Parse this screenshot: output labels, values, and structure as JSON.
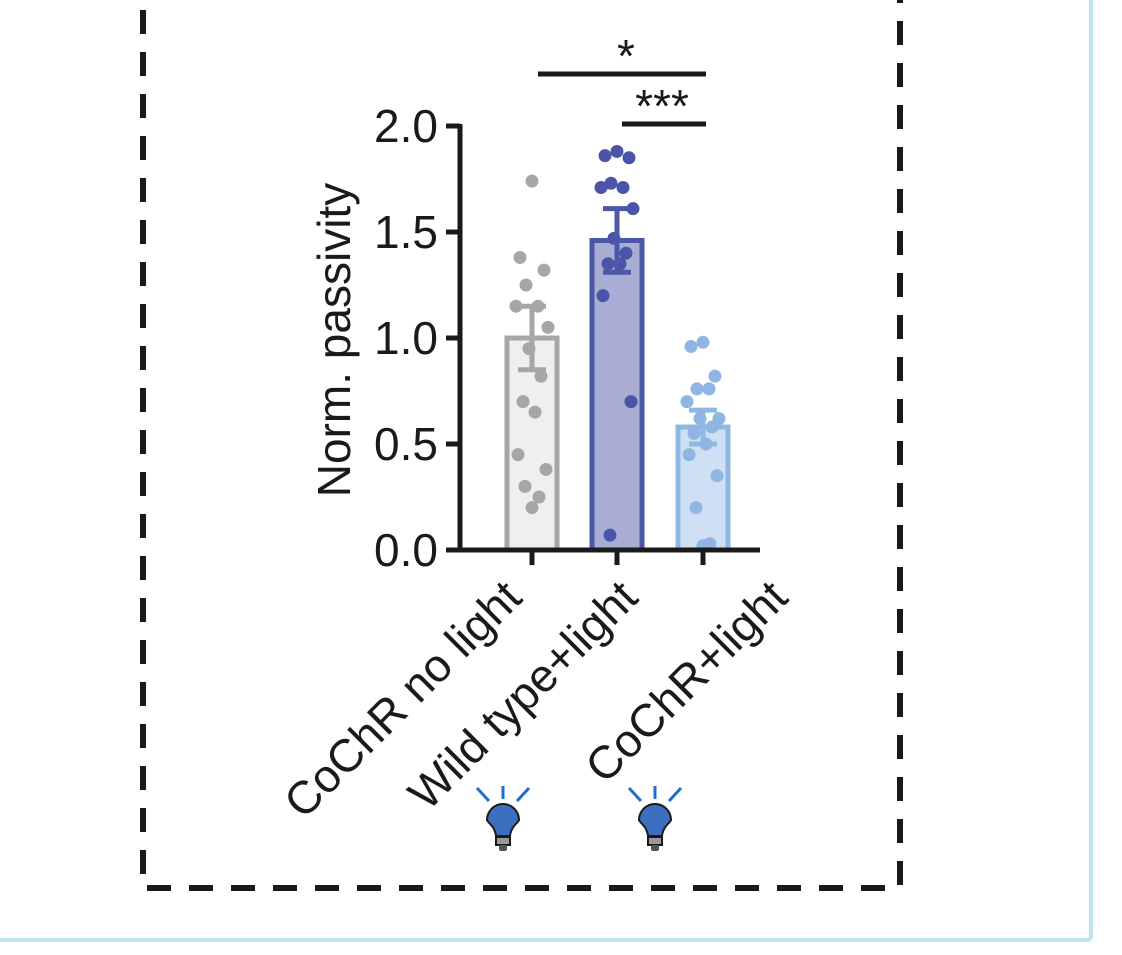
{
  "chart_data": {
    "type": "bar",
    "categories": [
      "CoChR no light",
      "Wild type+light",
      "CoChR+light"
    ],
    "ylabel": "Norm. passivity",
    "ylim": [
      0,
      2.0
    ],
    "yticks": [
      "0.0",
      "0.5",
      "1.0",
      "1.5",
      "2.0"
    ],
    "ytick_values": [
      0,
      0.5,
      1.0,
      1.5,
      2.0
    ],
    "series": [
      {
        "values": [
          1.0,
          1.46,
          0.58
        ],
        "sem": [
          0.15,
          0.15,
          0.08
        ]
      }
    ],
    "points": [
      [
        1.74,
        1.38,
        1.32,
        1.25,
        1.15,
        1.15,
        1.05,
        0.95,
        0.82,
        0.7,
        0.65,
        0.45,
        0.38,
        0.3,
        0.25,
        0.2
      ],
      [
        1.88,
        1.86,
        1.85,
        1.73,
        1.71,
        1.71,
        1.61,
        1.47,
        1.4,
        1.35,
        1.35,
        1.2,
        0.7,
        0.07
      ],
      [
        0.98,
        0.96,
        0.82,
        0.76,
        0.76,
        0.7,
        0.62,
        0.62,
        0.58,
        0.55,
        0.5,
        0.45,
        0.35,
        0.2,
        0.03,
        0.02
      ]
    ],
    "significance": [
      {
        "from": 0,
        "to": 2,
        "label": "*"
      },
      {
        "from": 1,
        "to": 2,
        "label": "***"
      }
    ],
    "light_icon": "lightbulb-icon",
    "light_on_categories": [
      1,
      2
    ],
    "colors": {
      "fill": [
        "#efefef",
        "#a9acd3",
        "#cfe0f4"
      ],
      "edge": [
        "#a6a6a6",
        "#4d57a8",
        "#8fb7e3"
      ],
      "dots": [
        "#a6a6a6",
        "#4a54a8",
        "#8fb6e2"
      ],
      "bulb": "#3d6fc0",
      "rays": "#1f6fd0",
      "panel_border": "#bfe3f4",
      "dashed_border": "#1a1a1a"
    }
  }
}
